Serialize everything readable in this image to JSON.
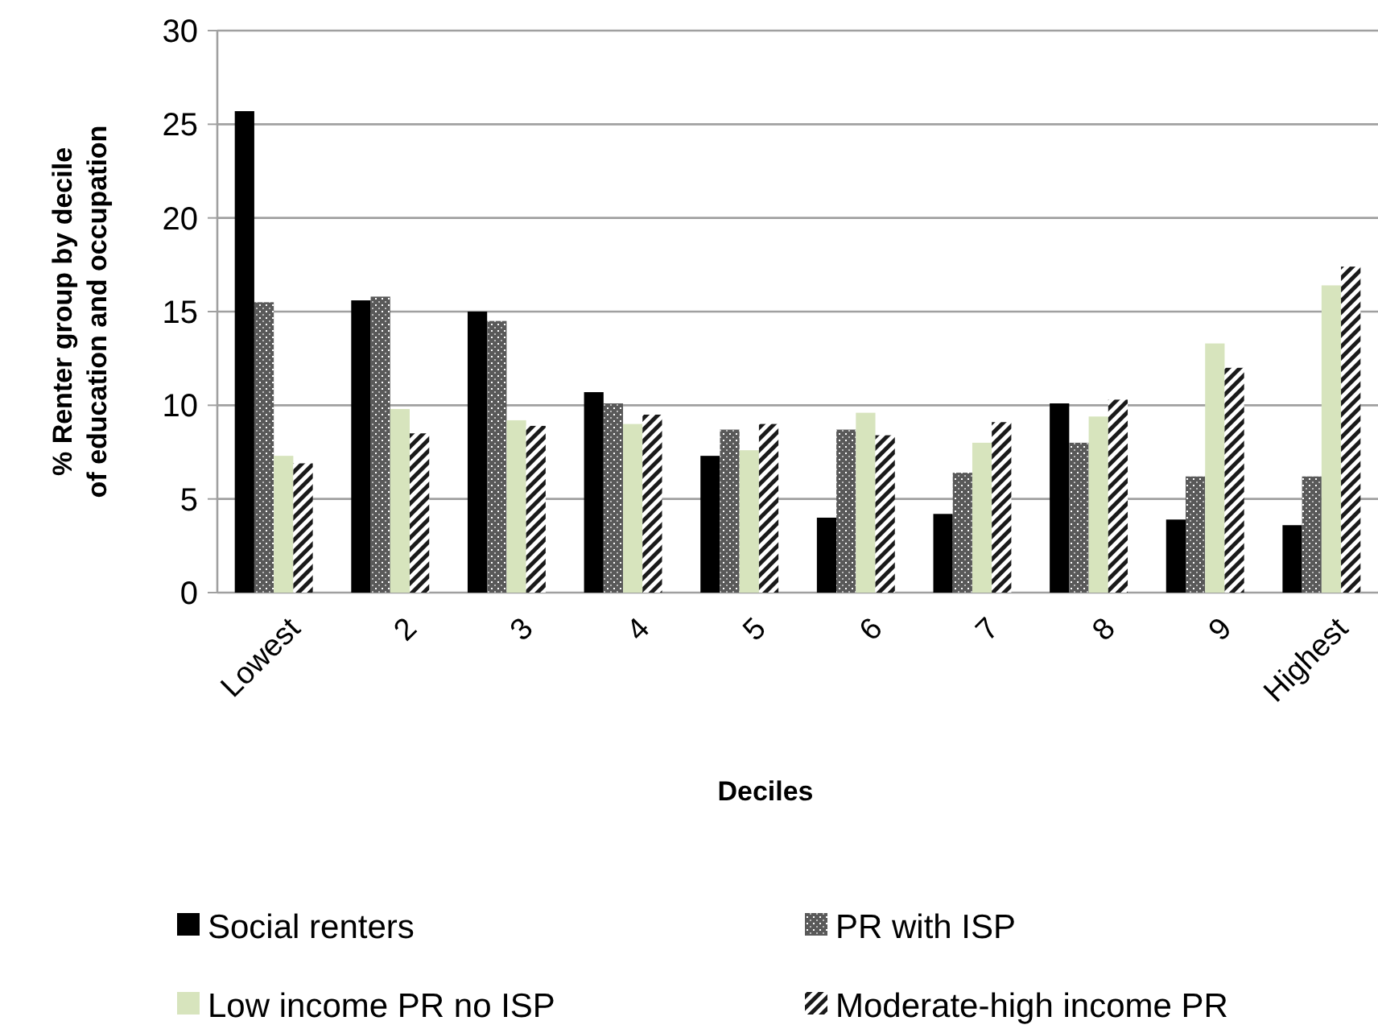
{
  "chart_data": {
    "type": "bar",
    "xlabel": "Deciles",
    "ylabel": "% Renter group by decile of education and occupation",
    "categories": [
      "Lowest",
      "2",
      "3",
      "4",
      "5",
      "6",
      "7",
      "8",
      "9",
      "Highest"
    ],
    "series": [
      {
        "name": "Social renters",
        "color": "#000000",
        "values": [
          25.7,
          15.6,
          15.0,
          10.7,
          7.3,
          4.0,
          4.2,
          10.1,
          3.9,
          3.6
        ]
      },
      {
        "name": "PR with ISP",
        "color": "#595959",
        "values": [
          15.5,
          15.8,
          14.5,
          10.1,
          8.7,
          8.7,
          6.4,
          8.0,
          6.2,
          6.2
        ]
      },
      {
        "name": "Low income PR no ISP",
        "color": "#d7e4bd",
        "values": [
          7.3,
          9.8,
          9.2,
          9.0,
          7.6,
          9.6,
          8.0,
          9.4,
          13.3,
          16.4
        ]
      },
      {
        "name": "Moderate-high income PR",
        "color": "#1a1a1a",
        "values": [
          6.9,
          8.5,
          8.9,
          9.5,
          9.0,
          8.4,
          9.1,
          10.3,
          12.0,
          17.4
        ]
      }
    ],
    "ylim": [
      0,
      30
    ],
    "yticks": [
      0,
      5,
      10,
      15,
      20,
      25,
      30
    ],
    "grid": "y",
    "legend": "bottom"
  }
}
